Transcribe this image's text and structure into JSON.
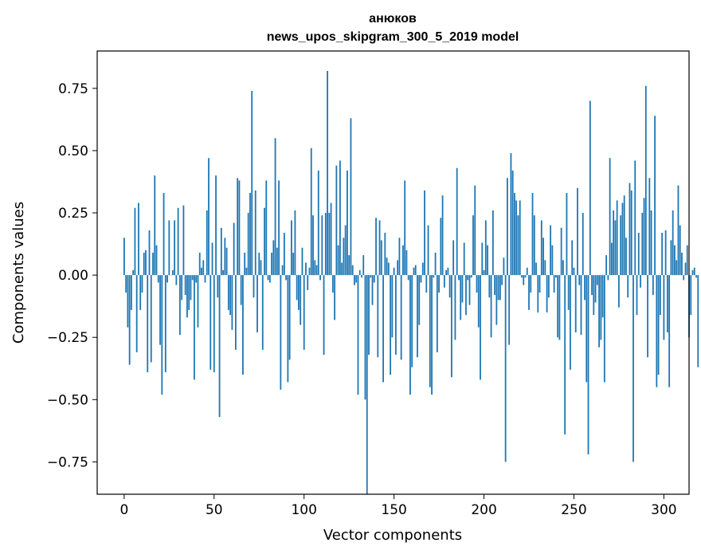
{
  "chart_data": {
    "type": "bar",
    "title": "анюков",
    "subtitle": "news_upos_skipgram_300_5_2019 model",
    "xlabel": "Vector components",
    "ylabel": "Components values",
    "xlim": [
      -15,
      314
    ],
    "ylim": [
      -0.88,
      0.9
    ],
    "grid": false,
    "xticks": [
      {
        "value": 0,
        "label": "0"
      },
      {
        "value": 50,
        "label": "50"
      },
      {
        "value": 100,
        "label": "100"
      },
      {
        "value": 150,
        "label": "150"
      },
      {
        "value": 200,
        "label": "200"
      },
      {
        "value": 250,
        "label": "250"
      },
      {
        "value": 300,
        "label": "300"
      }
    ],
    "yticks": [
      {
        "value": 0.75,
        "label": "0.75"
      },
      {
        "value": 0.5,
        "label": "0.50"
      },
      {
        "value": 0.25,
        "label": "0.25"
      },
      {
        "value": 0.0,
        "label": "0.00"
      },
      {
        "value": -0.25,
        "label": "−0.25"
      },
      {
        "value": -0.5,
        "label": "−0.50"
      },
      {
        "value": -0.75,
        "label": "−0.75"
      }
    ],
    "bar_color": "#1f77b4",
    "values": [
      0.15,
      -0.07,
      -0.21,
      -0.36,
      -0.14,
      0.02,
      0.27,
      -0.31,
      0.29,
      -0.14,
      -0.07,
      0.09,
      0.1,
      -0.39,
      0.18,
      -0.35,
      0.09,
      0.4,
      0.12,
      -0.03,
      -0.28,
      -0.48,
      0.33,
      -0.39,
      -0.03,
      0.22,
      0.0,
      0.02,
      0.22,
      -0.04,
      0.27,
      -0.24,
      -0.1,
      0.28,
      -0.08,
      -0.17,
      -0.14,
      -0.1,
      -0.02,
      -0.42,
      -0.03,
      -0.21,
      0.09,
      0.03,
      0.06,
      -0.03,
      0.26,
      0.47,
      -0.38,
      0.13,
      -0.39,
      0.4,
      -0.09,
      -0.57,
      0.19,
      0.02,
      0.15,
      0.11,
      -0.14,
      -0.16,
      -0.22,
      0.21,
      -0.3,
      0.39,
      0.38,
      -0.12,
      -0.4,
      0.09,
      0.03,
      0.25,
      0.33,
      0.74,
      -0.09,
      0.34,
      -0.23,
      0.09,
      0.06,
      -0.3,
      0.27,
      0.38,
      -0.02,
      -0.03,
      0.09,
      0.14,
      0.55,
      0.11,
      0.38,
      -0.46,
      0.04,
      0.17,
      -0.02,
      -0.43,
      -0.34,
      0.22,
      0.09,
      0.26,
      -0.1,
      -0.14,
      -0.2,
      0.11,
      -0.3,
      0.05,
      -0.06,
      0.03,
      0.51,
      0.24,
      0.06,
      0.04,
      0.42,
      -0.02,
      0.24,
      -0.32,
      0.25,
      0.82,
      0.25,
      0.29,
      -0.07,
      -0.18,
      0.44,
      0.12,
      0.46,
      0.05,
      0.15,
      0.2,
      0.42,
      0.08,
      0.63,
      0.04,
      -0.04,
      -0.03,
      -0.48,
      0.02,
      -0.01,
      0.08,
      -0.5,
      -0.88,
      -0.32,
      -0.01,
      -0.12,
      -0.03,
      0.23,
      -0.33,
      0.22,
      0.14,
      -0.43,
      0.17,
      0.07,
      0.05,
      -0.4,
      -0.25,
      0.03,
      -0.32,
      0.06,
      0.15,
      -0.34,
      0.12,
      0.38,
      0.1,
      -0.02,
      -0.48,
      -0.37,
      0.03,
      0.04,
      -0.33,
      -0.2,
      -0.03,
      0.05,
      0.34,
      -0.07,
      0.2,
      -0.45,
      -0.48,
      -0.01,
      0.09,
      -0.31,
      -0.07,
      0.23,
      0.32,
      -0.05,
      0.02,
      0.03,
      -0.09,
      -0.41,
      0.14,
      -0.26,
      0.43,
      -0.02,
      -0.18,
      -0.11,
      0.13,
      -0.16,
      -0.02,
      -0.12,
      -0.01,
      0.24,
      0.36,
      -0.07,
      -0.21,
      -0.42,
      0.13,
      0.02,
      0.22,
      0.12,
      -0.09,
      -0.25,
      0.26,
      -0.08,
      -0.2,
      -0.1,
      -0.1,
      -0.04,
      0.07,
      -0.75,
      0.39,
      -0.28,
      0.49,
      0.42,
      0.33,
      0.3,
      0.24,
      0.3,
      -0.01,
      -0.04,
      -0.01,
      0.03,
      -0.14,
      -0.07,
      0.33,
      0.24,
      0.05,
      -0.15,
      -0.07,
      0.22,
      0.15,
      0.06,
      -0.15,
      -0.09,
      0.2,
      0.12,
      -0.07,
      -0.01,
      -0.25,
      -0.26,
      0.19,
      0.06,
      -0.64,
      0.33,
      -0.14,
      -0.38,
      0.14,
      0.03,
      -0.23,
      0.35,
      -0.04,
      -0.24,
      0.25,
      -0.1,
      -0.43,
      -0.72,
      0.7,
      -0.08,
      -0.16,
      -0.11,
      -0.04,
      -0.29,
      -0.26,
      -0.17,
      -0.43,
      0.08,
      -0.02,
      0.47,
      0.13,
      0.26,
      0.22,
      0.3,
      -0.13,
      0.24,
      0.29,
      0.32,
      0.15,
      -0.09,
      0.37,
      0.34,
      -0.75,
      0.46,
      -0.16,
      0.17,
      -0.05,
      0.25,
      0.31,
      0.76,
      -0.33,
      0.39,
      0.26,
      -0.08,
      0.64,
      -0.45,
      -0.4,
      -0.16,
      0.17,
      -0.26,
      0.18,
      -0.23,
      -0.45,
      0.14,
      0.26,
      0.12,
      0.06,
      0.36,
      0.2,
      0.09,
      -0.02,
      0.05,
      0.12,
      -0.25,
      -0.16,
      0.02,
      0.03,
      -0.01,
      -0.37
    ]
  }
}
